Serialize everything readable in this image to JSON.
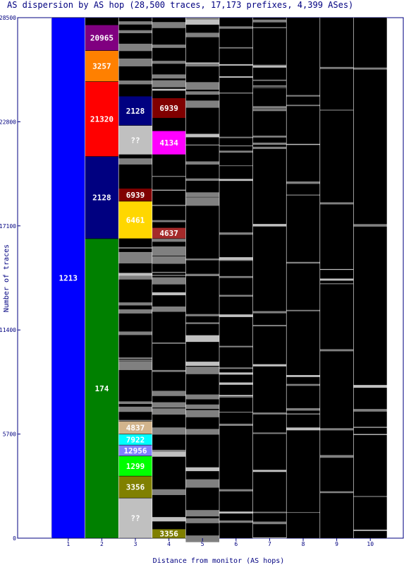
{
  "chart_data": {
    "type": "bar",
    "title": "AS dispersion by AS hop (28,500 traces, 17,173 prefixes, 4,399 ASes)",
    "xlabel": "Distance from monitor (AS hops)",
    "ylabel": "Number of traces",
    "ylim": [
      0,
      28500
    ],
    "y_ticks": [
      "0",
      "5700",
      "11400",
      "17100",
      "22800",
      "28500"
    ],
    "x_ticks": [
      "1",
      "2",
      "3",
      "4",
      "5",
      "6",
      "7",
      "8",
      "9",
      "10"
    ],
    "plot_background": "#000000",
    "other_as_color": "#808080",
    "segments": [
      {
        "hop": 1,
        "label": "1213",
        "from": 0,
        "to": 28500,
        "color": "#0000ff"
      },
      {
        "hop": 2,
        "label": "174",
        "from": 0,
        "to": 16400,
        "color": "#008000"
      },
      {
        "hop": 2,
        "label": "2128",
        "from": 16400,
        "to": 20900,
        "color": "#000080"
      },
      {
        "hop": 2,
        "label": "21320",
        "from": 20900,
        "to": 25000,
        "color": "#ff0000"
      },
      {
        "hop": 2,
        "label": "3257",
        "from": 25000,
        "to": 26700,
        "color": "#ff8000"
      },
      {
        "hop": 2,
        "label": "20965",
        "from": 26700,
        "to": 28100,
        "color": "#800080"
      },
      {
        "hop": 3,
        "label": "??",
        "from": 0,
        "to": 2200,
        "color": "#c0c0c0"
      },
      {
        "hop": 3,
        "label": "3356",
        "from": 2200,
        "to": 3400,
        "color": "#808000"
      },
      {
        "hop": 3,
        "label": "1299",
        "from": 3400,
        "to": 4500,
        "color": "#00ff00"
      },
      {
        "hop": 3,
        "label": "12956",
        "from": 4500,
        "to": 5100,
        "color": "#8080ff"
      },
      {
        "hop": 3,
        "label": "7922",
        "from": 5100,
        "to": 5700,
        "color": "#00ffff"
      },
      {
        "hop": 3,
        "label": "4837",
        "from": 5700,
        "to": 6400,
        "color": "#d2b48c"
      },
      {
        "hop": 3,
        "label": "6461",
        "from": 16400,
        "to": 18450,
        "color": "#ffd700"
      },
      {
        "hop": 3,
        "label": "6939",
        "from": 18450,
        "to": 19150,
        "color": "#800000"
      },
      {
        "hop": 3,
        "label": "??",
        "from": 21000,
        "to": 22600,
        "color": "#c0c0c0"
      },
      {
        "hop": 3,
        "label": "2128",
        "from": 22600,
        "to": 24200,
        "color": "#000080"
      },
      {
        "hop": 4,
        "label": "3356",
        "from": 0,
        "to": 500,
        "color": "#808000"
      },
      {
        "hop": 4,
        "label": "4637",
        "from": 16400,
        "to": 17000,
        "color": "#a52a2a"
      },
      {
        "hop": 4,
        "label": "4134",
        "from": 21000,
        "to": 22300,
        "color": "#ff00ff"
      },
      {
        "hop": 4,
        "label": "6939",
        "from": 23000,
        "to": 24100,
        "color": "#800000"
      }
    ]
  }
}
